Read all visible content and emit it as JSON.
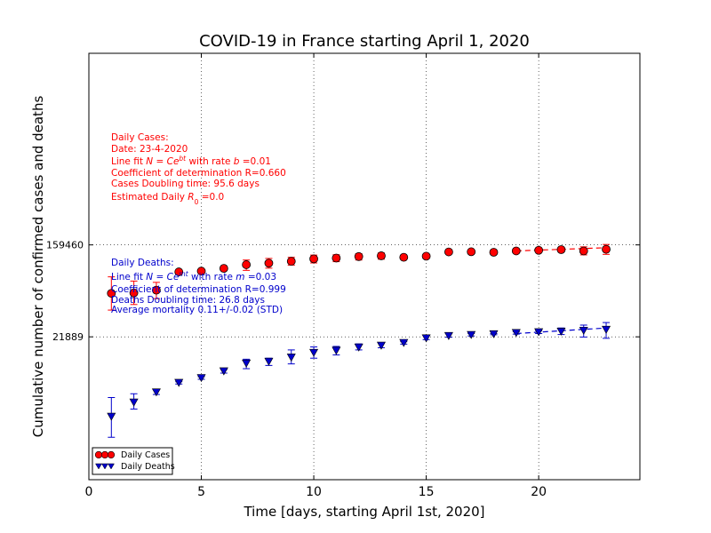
{
  "chart_data": {
    "type": "scatter",
    "title": "COVID-19 in France starting April 1, 2020",
    "xlabel": "Time [days, starting April 1st, 2020]",
    "ylabel": "Cumulative number of confirmed cases and deaths",
    "xlim": [
      0,
      24.5
    ],
    "xticks": [
      0,
      5,
      10,
      15,
      20
    ],
    "y_scale": "log",
    "ylim": [
      1000,
      10000000
    ],
    "ytick_labels": [
      "21889",
      "159460"
    ],
    "ytick_values": [
      21889,
      159460
    ],
    "grid": "dotted",
    "legend_position": "bottom-left",
    "colors": {
      "cases": "#ff0000",
      "deaths": "#0000cc",
      "case_annotation": "#ff0000",
      "death_annotation": "#0000cc"
    },
    "series": [
      {
        "name": "Daily Cases",
        "marker": "circle",
        "x": [
          1,
          2,
          3,
          4,
          5,
          6,
          7,
          8,
          9,
          10,
          11,
          12,
          13,
          14,
          15,
          16,
          17,
          18,
          19,
          20,
          21,
          22,
          23
        ],
        "y": [
          56000,
          56500,
          60000,
          89000,
          90500,
          96000,
          104000,
          107500,
          112000,
          118000,
          120000,
          124000,
          126000,
          122000,
          125000,
          137000,
          137500,
          136000,
          140000,
          142000,
          144000,
          140000,
          145000
        ],
        "err_low": [
          39000,
          44000,
          50000,
          87000,
          88500,
          92000,
          92000,
          96500,
          103000,
          108000,
          111000,
          115000,
          117000,
          120000,
          123500,
          135000,
          135500,
          134500,
          138500,
          140500,
          140500,
          128500,
          130000
        ],
        "err_high": [
          80000,
          73000,
          71000,
          91000,
          92500,
          100000,
          115000,
          119000,
          122000,
          128000,
          129000,
          132000,
          134000,
          124000,
          126500,
          139000,
          139500,
          137500,
          141500,
          143500,
          147500,
          153000,
          161000
        ],
        "fit_x": [
          19,
          23
        ],
        "fit_y": [
          140000,
          150000
        ]
      },
      {
        "name": "Daily Deaths",
        "marker": "triangle-down",
        "x": [
          1,
          2,
          3,
          4,
          5,
          6,
          7,
          8,
          9,
          10,
          11,
          12,
          13,
          14,
          15,
          16,
          17,
          18,
          19,
          20,
          21,
          22,
          23
        ],
        "y": [
          3900,
          5300,
          6600,
          8100,
          9000,
          10400,
          12300,
          12800,
          14000,
          15500,
          16200,
          17400,
          18100,
          19200,
          21200,
          22300,
          22800,
          23200,
          23800,
          24200,
          24500,
          25000,
          25500
        ],
        "err_low": [
          2500,
          4600,
          6300,
          7900,
          8750,
          10000,
          11000,
          11800,
          12200,
          13800,
          14800,
          16500,
          17300,
          18700,
          20600,
          21700,
          22300,
          22900,
          23200,
          23500,
          23000,
          21800,
          21200
        ],
        "err_high": [
          5900,
          6400,
          7000,
          8300,
          9250,
          10800,
          13500,
          13800,
          16500,
          17600,
          17800,
          18800,
          19100,
          19700,
          22500,
          23500,
          23500,
          23500,
          24400,
          25000,
          26500,
          28200,
          29800
        ],
        "fit_x": [
          19,
          23
        ],
        "fit_y": [
          23500,
          26500
        ]
      }
    ]
  },
  "annotations": {
    "cases": {
      "line1": "Daily Cases:",
      "line2": "Date: 23-4-2020",
      "line3_prefix": "Line fit ",
      "line3_math": "N = Ce",
      "line3_sup": "bt",
      "line3_mid": " with rate ",
      "line3_var": "b",
      "line3_suffix": " =0.01",
      "line4": "Coefficient of determination R=0.660",
      "line5": "Cases Doubling time: 95.6 days",
      "line6_prefix": "Estimated Daily ",
      "line6_var": "R",
      "line6_sub": "0",
      "line6_suffix": " =0.0"
    },
    "deaths": {
      "line1": "Daily Deaths:",
      "line2_prefix": "Line fit ",
      "line2_math": "N = Ce",
      "line2_sup": "mt",
      "line2_mid": " with rate ",
      "line2_var": "m",
      "line2_suffix": " =0.03",
      "line3": "Coefficient of determination R=0.999",
      "line4": "Deaths Doubling time: 26.8 days",
      "line5": "Average mortality 0.11+/-0.02 (STD)"
    }
  }
}
